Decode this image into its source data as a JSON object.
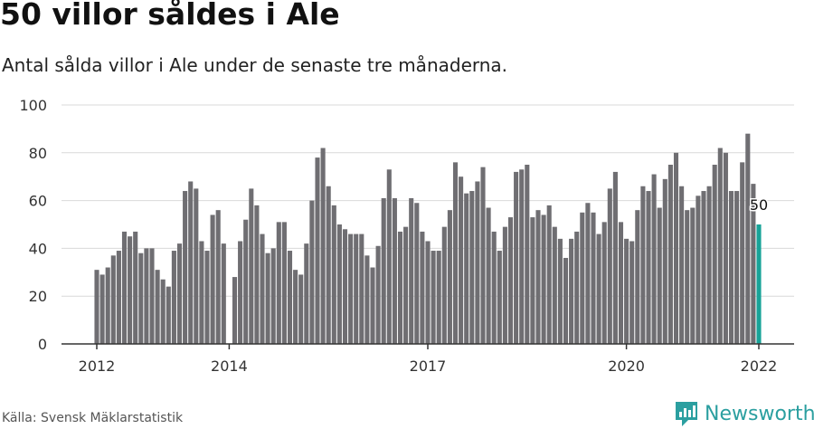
{
  "header": {
    "title": "50 villor såldes i Ale",
    "subtitle": "Antal sålda villor i Ale under de senaste tre månaderna."
  },
  "footer": {
    "source": "Källa: Svensk Mäklarstatistik",
    "brand": "Newsworthy"
  },
  "colors": {
    "bar": "#6f6e72",
    "highlight": "#17a398",
    "grid": "#d9d9d9",
    "axis": "#333333",
    "brand": "#2b9fa0"
  },
  "chart_data": {
    "type": "bar",
    "title": "50 villor såldes i Ale",
    "subtitle": "Antal sålda villor i Ale under de senaste tre månaderna.",
    "xlabel": "",
    "ylabel": "",
    "ylim": [
      0,
      100
    ],
    "yticks": [
      0,
      20,
      40,
      60,
      80,
      100
    ],
    "grid": true,
    "legend": "none",
    "start": "2012-01",
    "xtick_labels": [
      {
        "label": "2012",
        "index": 0
      },
      {
        "label": "2014",
        "index": 24
      },
      {
        "label": "2017",
        "index": 60
      },
      {
        "label": "2020",
        "index": 96
      },
      {
        "label": "2022",
        "index": 120
      }
    ],
    "highlight_index": 120,
    "highlight_label": "50",
    "values": [
      31,
      29,
      32,
      37,
      39,
      47,
      45,
      47,
      38,
      40,
      40,
      31,
      27,
      24,
      39,
      42,
      64,
      68,
      65,
      43,
      39,
      54,
      56,
      42,
      0,
      28,
      43,
      52,
      65,
      58,
      46,
      38,
      40,
      51,
      51,
      39,
      31,
      29,
      42,
      60,
      78,
      82,
      66,
      58,
      50,
      48,
      46,
      46,
      46,
      37,
      32,
      41,
      61,
      73,
      61,
      47,
      49,
      61,
      59,
      47,
      43,
      39,
      39,
      49,
      56,
      76,
      70,
      63,
      64,
      68,
      74,
      57,
      47,
      39,
      49,
      53,
      72,
      73,
      75,
      53,
      56,
      54,
      58,
      49,
      44,
      36,
      44,
      47,
      55,
      59,
      55,
      46,
      51,
      65,
      72,
      51,
      44,
      43,
      56,
      66,
      64,
      71,
      57,
      69,
      75,
      80,
      66,
      56,
      57,
      62,
      64,
      66,
      75,
      82,
      80,
      64,
      64,
      76,
      88,
      67,
      50
    ]
  }
}
